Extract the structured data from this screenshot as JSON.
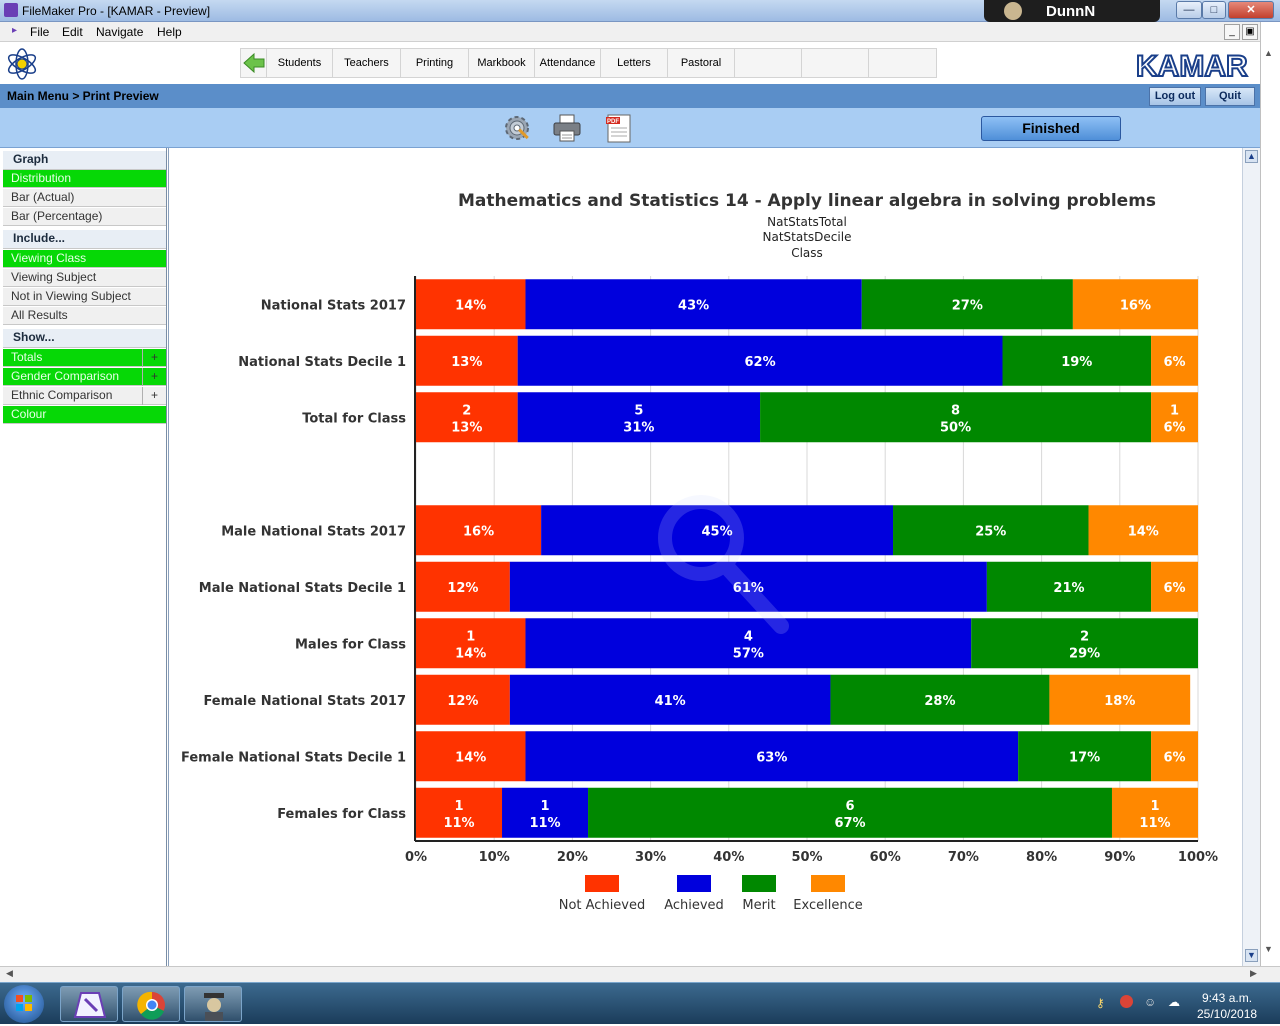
{
  "window": {
    "title": "FileMaker Pro - [KAMAR - Preview]",
    "user": "DunnN"
  },
  "menu": [
    "File",
    "Edit",
    "Navigate",
    "Help"
  ],
  "nav": {
    "tabs": [
      "Students",
      "Teachers",
      "Printing",
      "Markbook",
      "Attendance",
      "Letters",
      "Pastoral",
      "",
      "",
      ""
    ],
    "logo_text": "KAMAR"
  },
  "breadcrumb": {
    "text": "Main Menu  >  Print Preview",
    "logout": "Log out",
    "quit": "Quit"
  },
  "toolbar": {
    "finished": "Finished",
    "icons": [
      "gear-icon",
      "printer-icon",
      "pdf-icon"
    ]
  },
  "sidebar": {
    "graph_heading": "Graph",
    "graph_options": [
      {
        "label": "Distribution",
        "selected": true
      },
      {
        "label": "Bar (Actual)",
        "selected": false
      },
      {
        "label": "Bar (Percentage)",
        "selected": false
      }
    ],
    "include_heading": "Include...",
    "include_options": [
      {
        "label": "Viewing Class",
        "selected": true
      },
      {
        "label": "Viewing Subject",
        "selected": false
      },
      {
        "label": "Not in Viewing Subject",
        "selected": false
      },
      {
        "label": "All Results",
        "selected": false
      }
    ],
    "show_heading": "Show...",
    "show_options": [
      {
        "label": "Totals",
        "selected": true,
        "expand": "+"
      },
      {
        "label": "Gender Comparison",
        "selected": true,
        "expand": "+"
      },
      {
        "label": "Ethnic Comparison",
        "selected": false,
        "expand": "+"
      },
      {
        "label": "Colour",
        "selected": true,
        "expand": ""
      }
    ]
  },
  "chart_data": {
    "type": "bar",
    "orientation": "horizontal",
    "stacked": true,
    "title": "Mathematics and Statistics 14 - Apply linear algebra in solving problems",
    "subtitles": [
      "NatStatsTotal",
      "NatStatsDecile",
      "Class"
    ],
    "xlim": [
      0,
      100
    ],
    "xticks": [
      "0%",
      "10%",
      "20%",
      "30%",
      "40%",
      "50%",
      "60%",
      "70%",
      "80%",
      "90%",
      "100%"
    ],
    "grid": true,
    "legend_position": "bottom",
    "series_names": [
      "Not Achieved",
      "Achieved",
      "Merit",
      "Excellence"
    ],
    "colors": [
      "#ff3300",
      "#0000dd",
      "#008800",
      "#ff8800"
    ],
    "rows": [
      {
        "label": "National Stats 2017",
        "values": [
          14,
          43,
          27,
          16
        ],
        "counts": null
      },
      {
        "label": "National Stats Decile 1",
        "values": [
          13,
          62,
          19,
          6
        ],
        "counts": null
      },
      {
        "label": "Total for Class",
        "values": [
          13,
          31,
          50,
          6
        ],
        "counts": [
          2,
          5,
          8,
          1
        ]
      },
      {
        "label": "",
        "values": [
          0,
          0,
          0,
          0
        ],
        "counts": null
      },
      {
        "label": "Male National Stats 2017",
        "values": [
          16,
          45,
          25,
          14
        ],
        "counts": null
      },
      {
        "label": "Male National Stats Decile 1",
        "values": [
          12,
          61,
          21,
          6
        ],
        "counts": null
      },
      {
        "label": "Males for Class",
        "values": [
          14,
          57,
          29,
          0
        ],
        "counts": [
          1,
          4,
          2,
          0
        ]
      },
      {
        "label": "Female National Stats 2017",
        "values": [
          12,
          41,
          28,
          18
        ],
        "counts": null
      },
      {
        "label": "Female National Stats Decile 1",
        "values": [
          14,
          63,
          17,
          6
        ],
        "counts": null
      },
      {
        "label": "Females for Class",
        "values": [
          11,
          11,
          67,
          11
        ],
        "counts": [
          1,
          1,
          6,
          1
        ]
      }
    ]
  },
  "taskbar": {
    "apps": [
      "filemaker-app",
      "chrome-app",
      "kamar-app"
    ],
    "time": "9:43 a.m.",
    "date": "25/10/2018"
  }
}
